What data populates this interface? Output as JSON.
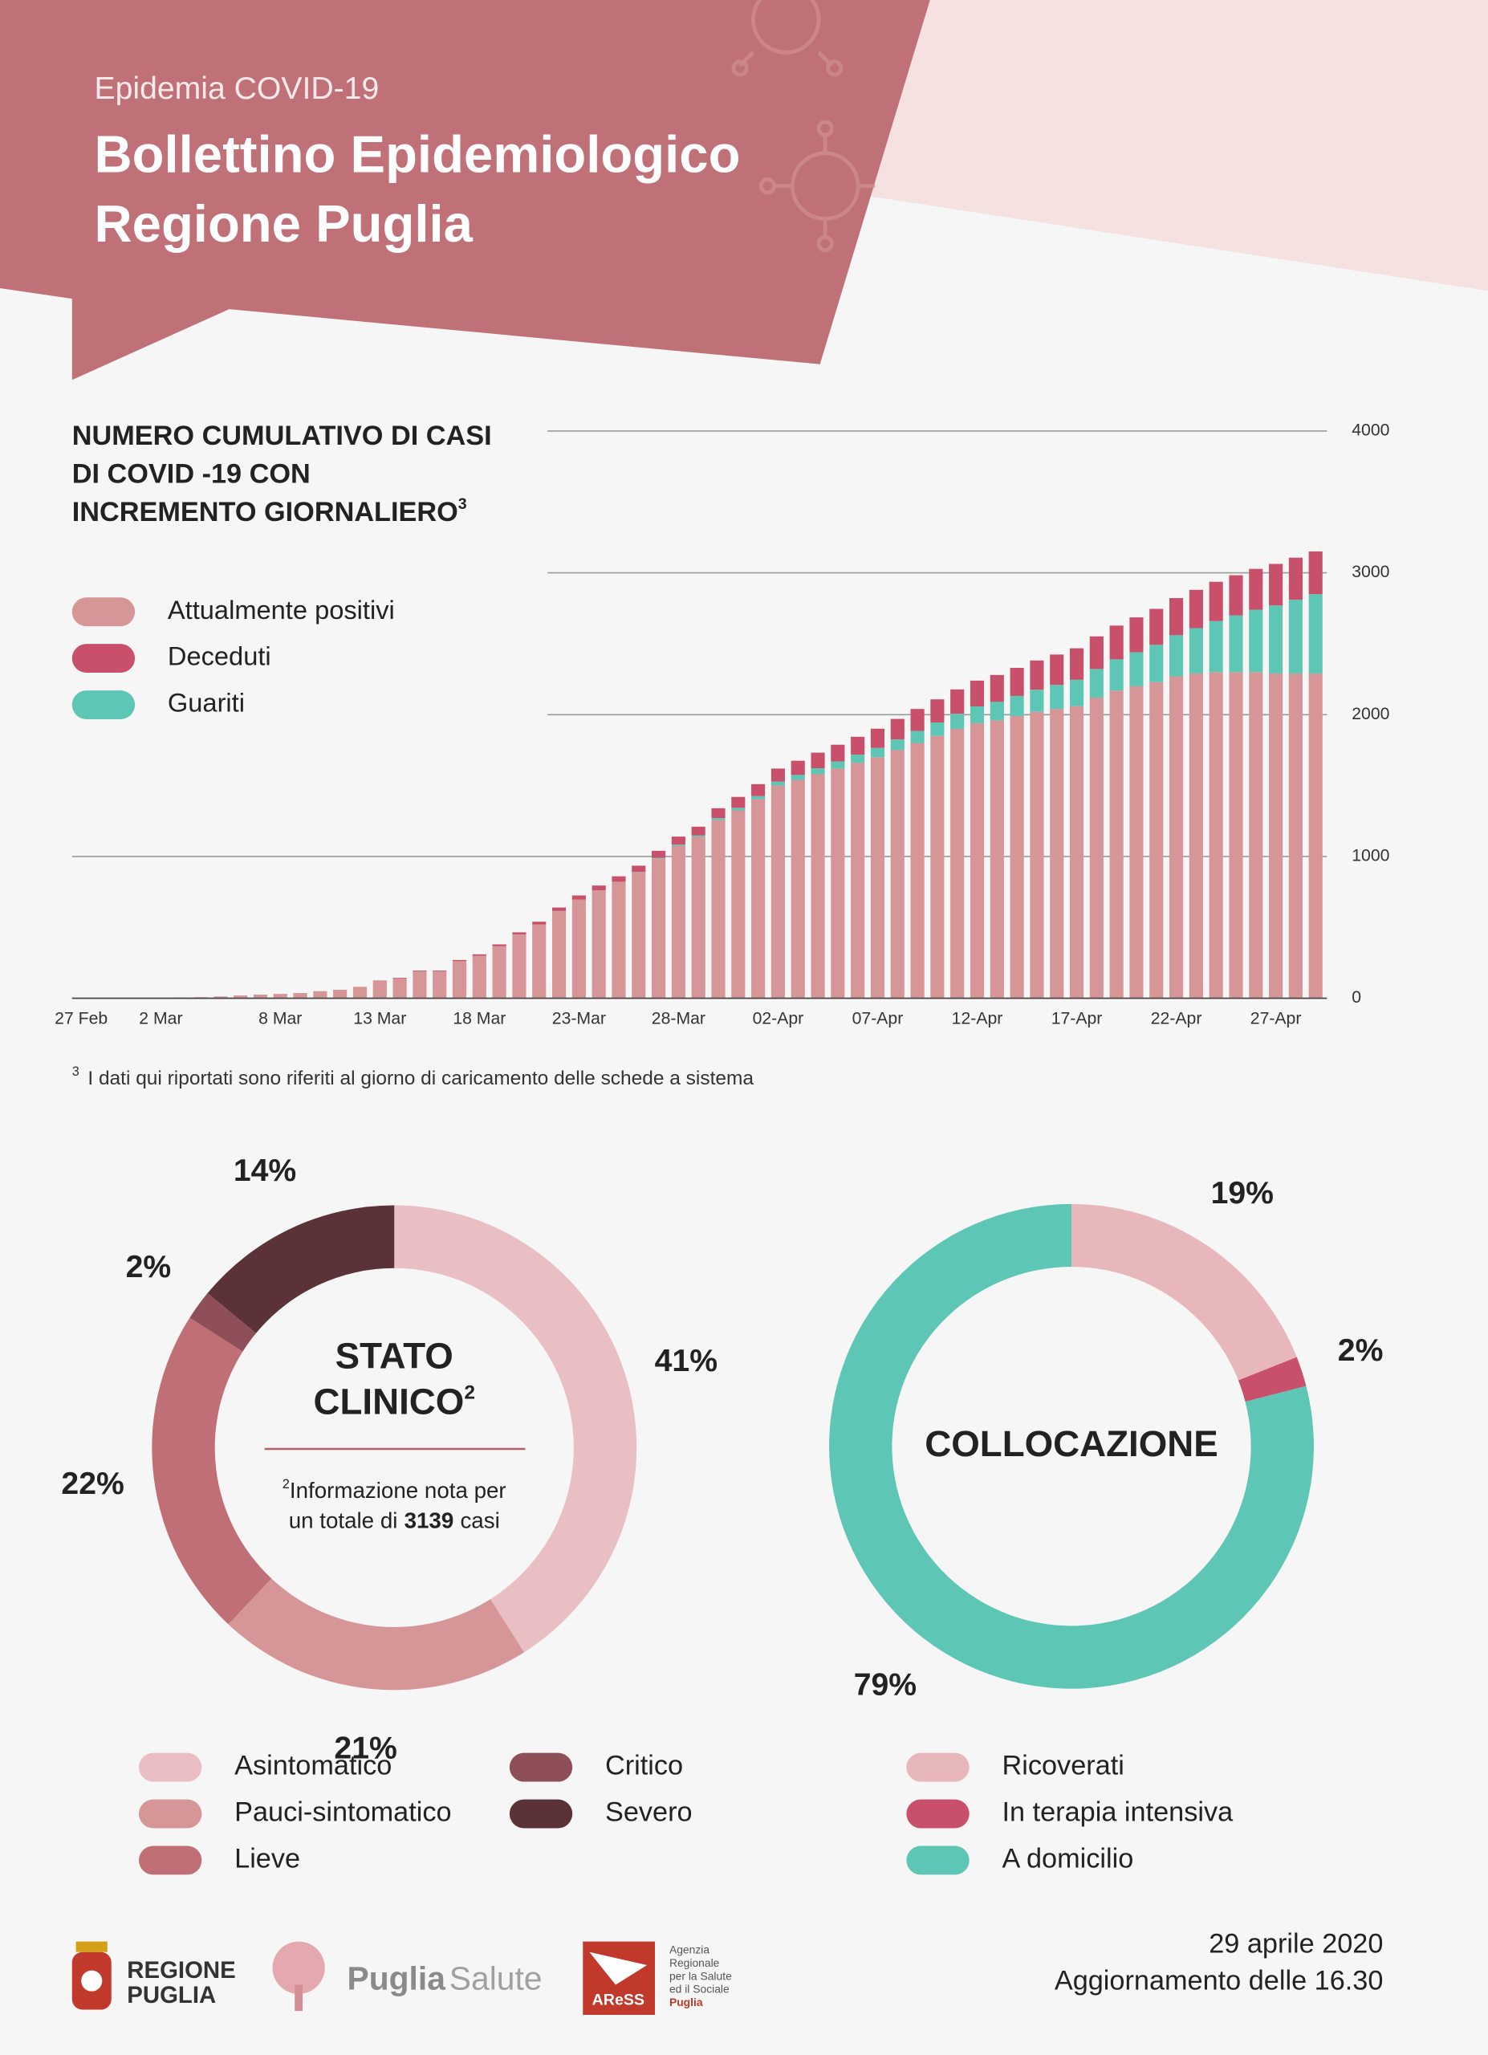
{
  "header": {
    "kicker": "Epidemia COVID-19",
    "title_lines": [
      "Bollettino Epidemiologico",
      "Regione Puglia"
    ]
  },
  "chart_data": [
    {
      "type": "bar",
      "stacked": true,
      "title_lines": [
        "NUMERO CUMULATIVO DI CASI",
        "DI COVID -19  CON",
        "INCREMENTO GIORNALIERO"
      ],
      "title_mark": "3",
      "categories": [
        "27 Feb",
        null,
        null,
        null,
        "2 Mar",
        null,
        null,
        null,
        null,
        null,
        "8 Mar",
        null,
        null,
        null,
        null,
        "13 Mar",
        null,
        null,
        null,
        null,
        "18 Mar",
        null,
        null,
        null,
        null,
        "23-Mar",
        null,
        null,
        null,
        null,
        "28-Mar",
        null,
        null,
        null,
        null,
        "02-Apr",
        null,
        null,
        null,
        null,
        "07-Apr",
        null,
        null,
        null,
        null,
        "12-Apr",
        null,
        null,
        null,
        null,
        "17-Apr",
        null,
        null,
        null,
        null,
        "22-Apr",
        null,
        null,
        null,
        null,
        "27-Apr",
        null,
        null
      ],
      "series": [
        {
          "name": "Attualmente positivi",
          "color": "#d69596",
          "values": [
            1,
            1,
            3,
            3,
            3,
            6,
            8,
            13,
            20,
            26,
            31,
            37,
            49,
            59,
            78,
            122,
            141,
            189,
            189,
            262,
            300,
            367,
            450,
            521,
            616,
            696,
            762,
            822,
            889,
            985,
            1076,
            1138,
            1256,
            1325,
            1404,
            1500,
            1540,
            1580,
            1620,
            1660,
            1700,
            1750,
            1800,
            1850,
            1900,
            1940,
            1960,
            1990,
            2020,
            2040,
            2060,
            2120,
            2170,
            2200,
            2230,
            2270,
            2290,
            2300,
            2300,
            2300,
            2290,
            2290,
            2290
          ]
        },
        {
          "name": "Deceduti",
          "color": "#c9506b",
          "values": [
            0,
            0,
            0,
            0,
            0,
            0,
            0,
            0,
            0,
            0,
            0,
            0,
            1,
            1,
            2,
            3,
            4,
            6,
            6,
            8,
            10,
            13,
            15,
            19,
            24,
            29,
            33,
            38,
            44,
            50,
            56,
            62,
            70,
            77,
            84,
            92,
            100,
            110,
            118,
            126,
            135,
            145,
            155,
            163,
            172,
            182,
            190,
            198,
            206,
            214,
            222,
            230,
            238,
            246,
            254,
            262,
            270,
            277,
            283,
            288,
            293,
            297,
            301
          ]
        },
        {
          "name": "Guariti",
          "color": "#5ec6b5",
          "values": [
            0,
            0,
            0,
            0,
            0,
            0,
            0,
            0,
            0,
            0,
            0,
            0,
            0,
            0,
            0,
            0,
            0,
            0,
            0,
            0,
            0,
            0,
            0,
            0,
            0,
            0,
            0,
            0,
            2,
            5,
            8,
            10,
            14,
            18,
            22,
            28,
            35,
            42,
            50,
            58,
            66,
            75,
            85,
            95,
            106,
            118,
            130,
            142,
            156,
            170,
            186,
            202,
            220,
            240,
            262,
            290,
            320,
            360,
            400,
            440,
            480,
            520,
            560
          ]
        }
      ],
      "ylim": [
        0,
        4000
      ],
      "yticks": [
        0,
        1000,
        2000,
        3000,
        4000
      ],
      "grid": true,
      "legend": "upper left",
      "footnote": {
        "mark": "3",
        "text": "I dati qui riportati sono riferiti al giorno di caricamento delle schede a sistema"
      }
    },
    {
      "type": "pie",
      "donut": true,
      "center_lines": [
        "STATO",
        "CLINICO"
      ],
      "center_mark": "2",
      "note": {
        "mark": "2",
        "line1": "Informazione nota per",
        "line2": "un totale di",
        "total": 3139,
        "unit": "casi"
      },
      "categories": [
        "Asintomatico",
        "Pauci-sintomatico",
        "Lieve",
        "Critico",
        "Severo"
      ],
      "values": [
        41,
        21,
        22,
        2,
        14
      ],
      "value_labels": [
        "41%",
        "21%",
        "22%",
        "2%",
        "14%"
      ],
      "colors": [
        "#eabfc4",
        "#d69596",
        "#c06f76",
        "#8f4f59",
        "#5a3238"
      ]
    },
    {
      "type": "pie",
      "donut": true,
      "center_lines": [
        "COLLOCAZIONE"
      ],
      "categories": [
        "Ricoverati",
        "In terapia intensiva",
        "A domicilio"
      ],
      "values": [
        19,
        2,
        79
      ],
      "value_labels": [
        "19%",
        "2%",
        "79%"
      ],
      "colors": [
        "#e8b7bc",
        "#c9506b",
        "#5ec6b5"
      ]
    }
  ],
  "footer": {
    "regione": [
      "REGIONE",
      "PUGLIA"
    ],
    "puglia_salute": [
      "Puglia",
      "Salute"
    ],
    "aress": "AReSS",
    "aress_lines": [
      "Agenzia",
      "Regionale",
      "per la Salute",
      "ed il Sociale",
      "Puglia"
    ],
    "date": "29 aprile 2020",
    "update": "Aggiornamento delle 16.30"
  }
}
